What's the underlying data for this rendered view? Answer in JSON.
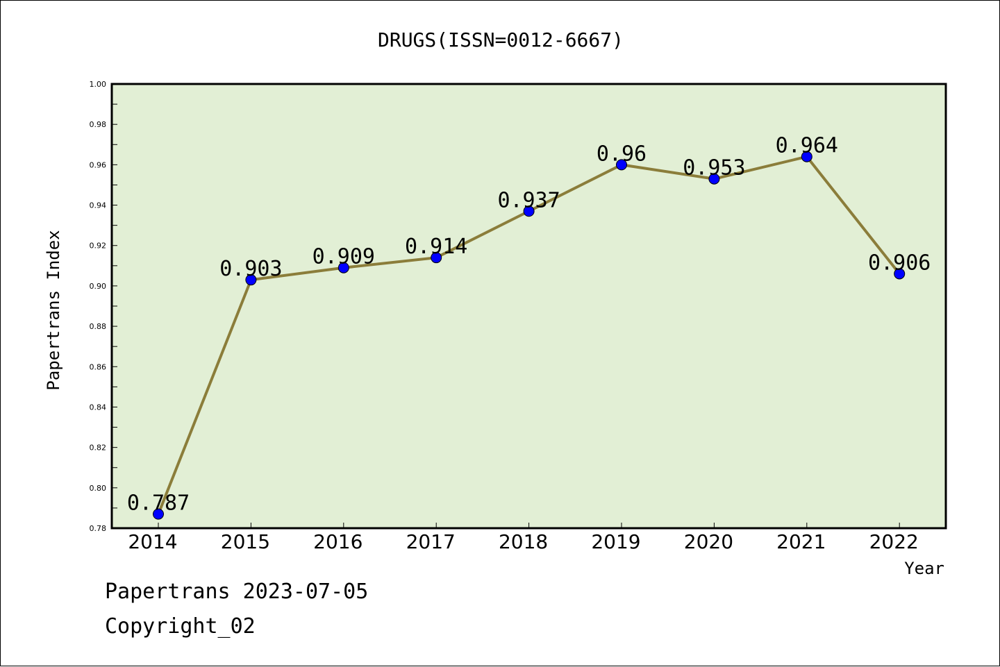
{
  "chart_data": {
    "type": "line",
    "title": "DRUGS(ISSN=0012-6667)",
    "xlabel": "Year",
    "ylabel": "Papertrans Index",
    "ylim": [
      0.78,
      1.0
    ],
    "yticks": [
      "0.78",
      "0.80",
      "0.82",
      "0.84",
      "0.86",
      "0.88",
      "0.90",
      "0.92",
      "0.94",
      "0.96",
      "0.98",
      "1.00"
    ],
    "categories": [
      "2014",
      "2015",
      "2016",
      "2017",
      "2018",
      "2019",
      "2020",
      "2021",
      "2022"
    ],
    "values": [
      0.787,
      0.903,
      0.909,
      0.914,
      0.937,
      0.96,
      0.953,
      0.964,
      0.906
    ],
    "data_labels": [
      "0.787",
      "0.903",
      "0.909",
      "0.914",
      "0.937",
      "0.96",
      "0.953",
      "0.964",
      "0.906"
    ],
    "grid": false,
    "line_color": "#8b7d3a",
    "marker_color": "#0000ff",
    "plot_background": "#e2efd5"
  },
  "footer": {
    "line1": "Papertrans 2023-07-05",
    "line2": "Copyright_02"
  }
}
